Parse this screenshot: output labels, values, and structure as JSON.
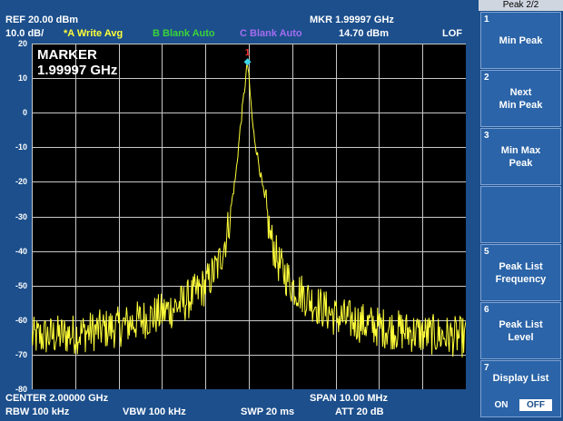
{
  "header": {
    "ref": "REF  20.00 dBm",
    "scale": "10.0 dB/",
    "trace_a": "*A Write Avg",
    "trace_b": "B Blank Auto",
    "trace_c": "C Blank Auto",
    "mkr_freq": "MKR 1.99997 GHz",
    "mkr_level": "14.70 dBm",
    "lof": "LOF"
  },
  "marker_box": {
    "title": "MARKER",
    "freq": "1.99997 GHz",
    "marker_number": "1"
  },
  "footer": {
    "center": "CENTER 2.00000 GHz",
    "span": "SPAN 10.00 MHz",
    "rbw": "RBW 100 kHz",
    "vbw": "VBW  100 kHz",
    "swp": "SWP  20 ms",
    "att": "ATT  20 dB"
  },
  "softkeys": {
    "title": "Peak 2/2",
    "items": [
      {
        "num": "1",
        "label": "Min Peak"
      },
      {
        "num": "2",
        "label": "Next\nMin Peak"
      },
      {
        "num": "3",
        "label": "Min Max\nPeak"
      },
      {
        "num": "",
        "label": ""
      },
      {
        "num": "5",
        "label": "Peak List\nFrequency"
      },
      {
        "num": "6",
        "label": "Peak List\nLevel"
      },
      {
        "num": "7",
        "label": "Display List"
      }
    ],
    "toggle_on": "ON",
    "toggle_off": "OFF",
    "toggle_selected": "OFF"
  },
  "chart_data": {
    "type": "line",
    "xlim": [
      1.995,
      2.005
    ],
    "ylim": [
      -80,
      20
    ],
    "y_ticks": [
      20,
      10,
      0,
      -10,
      -20,
      -30,
      -40,
      -50,
      -60,
      -70,
      -80
    ],
    "grid": true,
    "trace_color": "#ffff3a",
    "marker": {
      "x": 1.99997,
      "y": 14.7,
      "color": "#3ad4e6"
    },
    "series": [
      {
        "x": [
          1.995,
          1.996,
          1.997,
          1.998,
          1.9985,
          1.999,
          1.9993,
          1.9995,
          1.9997,
          1.9998,
          1.99997,
          2.0001,
          2.0003,
          2.0005,
          2.0007,
          2.001,
          2.0015,
          2.002,
          2.003,
          2.004,
          2.005
        ],
        "values": [
          -65,
          -64,
          -62,
          -58,
          -55,
          -50,
          -44,
          -35,
          -18,
          -5,
          14.7,
          -5,
          -20,
          -36,
          -44,
          -50,
          -55,
          -59,
          -62,
          -64,
          -65
        ]
      }
    ]
  }
}
